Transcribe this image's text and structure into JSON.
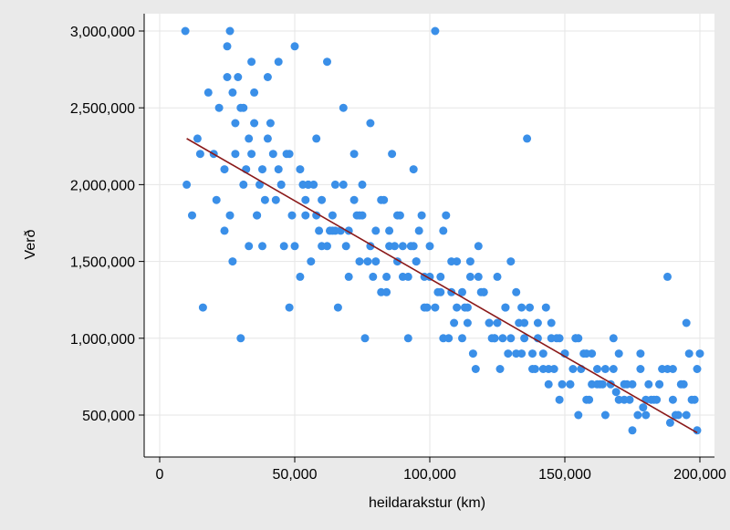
{
  "chart_data": {
    "type": "scatter",
    "title": "",
    "xlabel": "heildarakstur (km)",
    "ylabel": "Verð",
    "xlim": [
      0,
      200000
    ],
    "ylim": [
      300000,
      3000000
    ],
    "xticks": [
      0,
      50000,
      100000,
      150000,
      200000
    ],
    "xtick_labels": [
      "0",
      "50,000",
      "100,000",
      "150,000",
      "200,000"
    ],
    "yticks": [
      500000,
      1000000,
      1500000,
      2000000,
      2500000,
      3000000
    ],
    "ytick_labels": [
      "500,000",
      "1,000,000",
      "1,500,000",
      "2,000,000",
      "2,500,000",
      "3,000,000"
    ],
    "grid": true,
    "colors": {
      "points": "#3a8fe8",
      "fit_line": "#8b1a1a",
      "plot_bg": "#ffffff",
      "page_bg": "#eaeaea"
    },
    "series": [
      {
        "kind": "points",
        "x": [
          9500,
          12000,
          14000,
          16000,
          18000,
          20000,
          22000,
          24000,
          25000,
          26000,
          27000,
          28000,
          29000,
          30000,
          31000,
          32000,
          33000,
          34000,
          35000,
          36000,
          37000,
          38000,
          40000,
          42000,
          44000,
          45000,
          46000,
          48000,
          50000,
          52000,
          54000,
          55000,
          56000,
          58000,
          60000,
          62000,
          64000,
          65000,
          66000,
          68000,
          70000,
          72000,
          74000,
          75000,
          76000,
          78000,
          80000,
          82000,
          84000,
          85000,
          86000,
          88000,
          90000,
          92000,
          94000,
          95000,
          96000,
          98000,
          100000,
          102000,
          104000,
          105000,
          106000,
          108000,
          110000,
          112000,
          114000,
          115000,
          116000,
          118000,
          120000,
          122000,
          124000,
          125000,
          126000,
          128000,
          130000,
          132000,
          134000,
          135000,
          136000,
          138000,
          140000,
          142000,
          144000,
          145000,
          146000,
          148000,
          150000,
          152000,
          154000,
          155000,
          156000,
          158000,
          160000,
          162000,
          165000,
          168000,
          170000,
          172000,
          175000,
          178000,
          180000,
          182000,
          185000,
          188000,
          190000,
          192000,
          195000,
          198000,
          199000,
          25000,
          30000,
          35000,
          40000,
          45000,
          50000,
          55000,
          60000,
          65000,
          70000,
          75000,
          80000,
          85000,
          90000,
          95000,
          100000,
          105000,
          110000,
          115000,
          120000,
          125000,
          130000,
          135000,
          140000,
          145000,
          150000,
          155000,
          160000,
          165000,
          170000,
          175000,
          180000,
          185000,
          190000,
          195000,
          28000,
          33000,
          38000,
          43000,
          48000,
          53000,
          58000,
          63000,
          68000,
          73000,
          78000,
          83000,
          88000,
          93000,
          98000,
          103000,
          108000,
          113000,
          118000,
          123000,
          128000,
          133000,
          138000,
          143000,
          148000,
          153000,
          158000,
          163000,
          168000,
          173000,
          178000,
          183000,
          188000,
          193000,
          197000,
          10000,
          15000,
          21000,
          24000,
          27000,
          31000,
          36000,
          41000,
          47000,
          52000,
          57000,
          62000,
          67000,
          72000,
          77000,
          82000,
          87000,
          92000,
          97000,
          102000,
          107000,
          112000,
          117000,
          122000,
          127000,
          132000,
          137000,
          142000,
          147000,
          152000,
          157000,
          162000,
          167000,
          172000,
          177000,
          181000,
          186000,
          191000,
          196000,
          200000,
          26000,
          34000,
          44000,
          54000,
          64000,
          74000,
          84000,
          94000,
          104000,
          114000,
          124000,
          134000,
          144000,
          154000,
          164000,
          174000,
          184000,
          194000,
          39000,
          49000,
          59000,
          69000,
          79000,
          89000,
          99000,
          109000,
          119000,
          129000,
          139000,
          149000,
          159000,
          169000,
          179000,
          189000,
          199000
        ],
        "y": [
          3000000,
          1800000,
          2300000,
          1200000,
          2600000,
          2200000,
          2500000,
          1700000,
          2900000,
          3000000,
          1500000,
          2200000,
          2700000,
          1000000,
          2500000,
          2100000,
          1600000,
          2800000,
          2400000,
          1800000,
          2000000,
          1600000,
          2700000,
          2200000,
          2800000,
          2000000,
          1600000,
          1200000,
          2900000,
          2100000,
          1800000,
          2000000,
          1500000,
          2300000,
          1600000,
          2800000,
          1800000,
          2000000,
          1200000,
          2500000,
          1400000,
          2200000,
          1800000,
          2000000,
          1000000,
          2400000,
          1700000,
          1900000,
          1300000,
          1600000,
          2200000,
          1800000,
          1400000,
          1000000,
          2100000,
          1500000,
          1700000,
          1200000,
          1600000,
          3000000,
          1400000,
          1000000,
          1800000,
          1300000,
          1500000,
          1000000,
          1200000,
          1500000,
          900000,
          1400000,
          1300000,
          1100000,
          1000000,
          1400000,
          800000,
          1200000,
          1000000,
          1300000,
          900000,
          1100000,
          2300000,
          800000,
          1000000,
          900000,
          700000,
          1100000,
          800000,
          600000,
          900000,
          700000,
          1000000,
          500000,
          800000,
          600000,
          900000,
          700000,
          500000,
          800000,
          600000,
          700000,
          400000,
          800000,
          500000,
          600000,
          700000,
          1400000,
          800000,
          500000,
          1100000,
          600000,
          800000,
          2700000,
          2500000,
          2600000,
          2300000,
          2000000,
          1600000,
          2000000,
          1900000,
          1700000,
          1700000,
          1800000,
          1500000,
          1700000,
          1600000,
          1500000,
          1400000,
          1700000,
          1200000,
          1400000,
          1300000,
          1100000,
          1500000,
          1000000,
          1100000,
          1000000,
          900000,
          1000000,
          700000,
          800000,
          900000,
          700000,
          600000,
          700000,
          600000,
          500000,
          2400000,
          2300000,
          2100000,
          1900000,
          2200000,
          2000000,
          1800000,
          1700000,
          2000000,
          1800000,
          1600000,
          1900000,
          1500000,
          1600000,
          1400000,
          1300000,
          1500000,
          1200000,
          1600000,
          1000000,
          1200000,
          1100000,
          900000,
          1200000,
          1000000,
          800000,
          900000,
          700000,
          1000000,
          700000,
          900000,
          600000,
          800000,
          700000,
          600000,
          2000000,
          2200000,
          1900000,
          2100000,
          2600000,
          2000000,
          1800000,
          2400000,
          2200000,
          1400000,
          2000000,
          1600000,
          1700000,
          1900000,
          1500000,
          1300000,
          1600000,
          1400000,
          1800000,
          1200000,
          1000000,
          1300000,
          800000,
          1100000,
          1000000,
          900000,
          1200000,
          800000,
          1000000,
          700000,
          900000,
          800000,
          700000,
          600000,
          500000,
          700000,
          800000,
          500000,
          900000,
          900000,
          1800000,
          2200000,
          2100000,
          1900000,
          1700000,
          1500000,
          1400000,
          1600000,
          1300000,
          1100000,
          1000000,
          1200000,
          800000,
          1000000,
          700000,
          600000,
          600000,
          700000,
          1900000,
          1800000,
          1700000,
          1600000,
          1400000,
          1800000,
          1200000,
          1100000,
          1300000,
          900000,
          800000,
          700000,
          600000,
          650000,
          550000,
          450000,
          400000
        ]
      },
      {
        "kind": "fit_line",
        "x": [
          10000,
          199000
        ],
        "y": [
          2300000,
          385000
        ]
      }
    ]
  }
}
